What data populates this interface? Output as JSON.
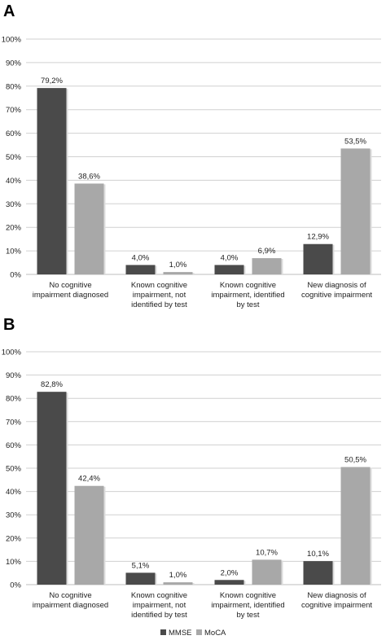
{
  "legend": [
    {
      "name": "MMSE",
      "color": "#4a4a4a"
    },
    {
      "name": "MoCA",
      "color": "#a8a8a8"
    }
  ],
  "chart_data": [
    {
      "type": "bar",
      "panel": "A",
      "categories": [
        [
          "No cognitive",
          "impairment diagnosed"
        ],
        [
          "Known cognitive",
          "impairment, not",
          "identified by test"
        ],
        [
          "Known cognitive",
          "impairment, identified",
          "by test"
        ],
        [
          "New diagnosis of",
          "cognitive impairment"
        ]
      ],
      "series": [
        {
          "name": "MMSE",
          "values": [
            79.2,
            4.0,
            4.0,
            12.9
          ],
          "labels": [
            "79,2%",
            "4,0%",
            "4,0%",
            "12,9%"
          ]
        },
        {
          "name": "MoCA",
          "values": [
            38.6,
            1.0,
            6.9,
            53.5
          ],
          "labels": [
            "38,6%",
            "1,0%",
            "6,9%",
            "53,5%"
          ]
        }
      ],
      "ylim": [
        0,
        100
      ],
      "yticks": [
        "0%",
        "10%",
        "20%",
        "30%",
        "40%",
        "50%",
        "60%",
        "70%",
        "80%",
        "90%",
        "100%"
      ],
      "grid": true
    },
    {
      "type": "bar",
      "panel": "B",
      "categories": [
        [
          "No cognitive",
          "impairment diagnosed"
        ],
        [
          "Known cognitive",
          "impairment, not",
          "identified by test"
        ],
        [
          "Known cognitive",
          "impairment, identified",
          "by test"
        ],
        [
          "New diagnosis of",
          "cognitive impairment"
        ]
      ],
      "series": [
        {
          "name": "MMSE",
          "values": [
            82.8,
            5.1,
            2.0,
            10.1
          ],
          "labels": [
            "82,8%",
            "5,1%",
            "2,0%",
            "10,1%"
          ]
        },
        {
          "name": "MoCA",
          "values": [
            42.4,
            1.0,
            10.7,
            50.5
          ],
          "labels": [
            "42,4%",
            "1,0%",
            "10,7%",
            "50,5%"
          ]
        }
      ],
      "ylim": [
        0,
        100
      ],
      "yticks": [
        "0%",
        "10%",
        "20%",
        "30%",
        "40%",
        "50%",
        "60%",
        "70%",
        "80%",
        "90%",
        "100%"
      ],
      "grid": true
    }
  ]
}
